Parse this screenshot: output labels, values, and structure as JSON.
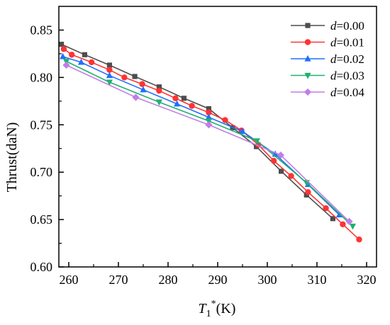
{
  "chart_data": {
    "type": "line",
    "xlabel": "T",
    "xlabel_subscript": "1",
    "xlabel_superscript": "*",
    "xlabel_unit": "(K)",
    "ylabel": "Thrust(daN)",
    "xlim": [
      258,
      322
    ],
    "ylim": [
      0.6,
      0.875
    ],
    "xticks": [
      260,
      270,
      280,
      290,
      300,
      310,
      320
    ],
    "yticks": [
      0.6,
      0.65,
      0.7,
      0.75,
      0.8,
      0.85
    ],
    "xtick_labels": [
      "260",
      "270",
      "280",
      "290",
      "300",
      "310",
      "320"
    ],
    "ytick_labels": [
      "0.60",
      "0.65",
      "0.70",
      "0.75",
      "0.80",
      "0.85"
    ],
    "grid": false,
    "legend_position": "top-right",
    "series": [
      {
        "name": "d=0.00",
        "label_italic": "d",
        "label_rest": "=0.00",
        "color": "#4d4d4d",
        "marker": "square",
        "x": [
          258.5,
          263.2,
          268.2,
          273.3,
          278.2,
          283.2,
          288.2,
          293.0,
          297.8,
          302.8,
          307.9,
          313.2
        ],
        "y": [
          0.835,
          0.824,
          0.813,
          0.801,
          0.79,
          0.778,
          0.767,
          0.747,
          0.727,
          0.701,
          0.676,
          0.651
        ]
      },
      {
        "name": "d=0.01",
        "label_italic": "d",
        "label_rest": "=0.01",
        "color": "#ff3333",
        "marker": "circle",
        "x": [
          259.0,
          260.6,
          264.6,
          268.2,
          271.2,
          274.8,
          278.2,
          281.5,
          284.8,
          288.2,
          291.5,
          294.8,
          298.2,
          301.3,
          304.8,
          308.2,
          311.8,
          315.2,
          318.5
        ],
        "y": [
          0.83,
          0.824,
          0.816,
          0.808,
          0.8,
          0.793,
          0.786,
          0.778,
          0.77,
          0.763,
          0.755,
          0.744,
          0.729,
          0.712,
          0.696,
          0.679,
          0.662,
          0.645,
          0.629
        ]
      },
      {
        "name": "d=0.02",
        "label_italic": "d",
        "label_rest": "=0.02",
        "color": "#1f6fff",
        "marker": "triangle-up",
        "x": [
          258.8,
          262.5,
          268.2,
          275.0,
          281.8,
          288.2,
          295.0,
          301.6,
          308.2,
          314.5
        ],
        "y": [
          0.822,
          0.816,
          0.802,
          0.787,
          0.772,
          0.758,
          0.743,
          0.719,
          0.687,
          0.655
        ]
      },
      {
        "name": "d=0.03",
        "label_italic": "d",
        "label_rest": "=0.03",
        "color": "#21b070",
        "marker": "triangle-down",
        "x": [
          259.5,
          268.2,
          278.2,
          288.2,
          297.9,
          307.9,
          317.2
        ],
        "y": [
          0.817,
          0.795,
          0.774,
          0.754,
          0.733,
          0.689,
          0.643
        ]
      },
      {
        "name": "d=0.04",
        "label_italic": "d",
        "label_rest": "=0.04",
        "color": "#c07ee6",
        "marker": "diamond",
        "x": [
          259.5,
          273.5,
          288.2,
          302.7,
          316.5
        ],
        "y": [
          0.813,
          0.779,
          0.75,
          0.718,
          0.648
        ]
      }
    ]
  }
}
